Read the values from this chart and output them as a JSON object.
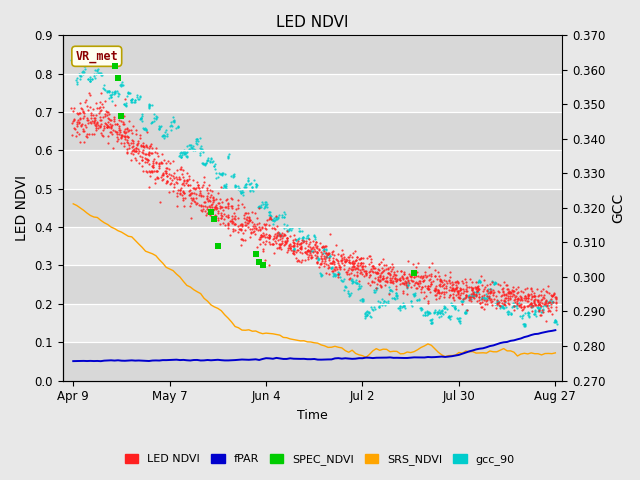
{
  "title": "LED NDVI",
  "xlabel": "Time",
  "ylabel_left": "LED NDVI",
  "ylabel_right": "GCC",
  "ylim_left": [
    0.0,
    0.9
  ],
  "ylim_right": [
    0.27,
    0.37
  ],
  "yticks_left": [
    0.0,
    0.1,
    0.2,
    0.3,
    0.4,
    0.5,
    0.6,
    0.7,
    0.8,
    0.9
  ],
  "yticks_right": [
    0.27,
    0.28,
    0.29,
    0.3,
    0.31,
    0.32,
    0.33,
    0.34,
    0.35,
    0.36,
    0.37
  ],
  "fig_bg_color": "#e8e8e8",
  "plot_bg_color": "#e8e8e8",
  "stripe_color": "#d0d0d0",
  "annotation_text": "VR_met",
  "annotation_color": "#8b0000",
  "annotation_bg": "#fffff0",
  "annotation_border": "#b8a000",
  "legend_labels": [
    "LED NDVI",
    "fPAR",
    "SPEC_NDVI",
    "SRS_NDVI",
    "gcc_90"
  ],
  "legend_colors": [
    "#ff2020",
    "#0000cd",
    "#00cc00",
    "#ffa500",
    "#00cccc"
  ],
  "series_colors": {
    "LED_NDVI": "#ff2020",
    "fPAR": "#0000cd",
    "SPEC_NDVI": "#00cc00",
    "SRS_NDVI": "#ffa500",
    "gcc_90": "#00cccc"
  },
  "tick_labels": [
    "Apr 9",
    "May 7",
    "Jun 4",
    "Jul 2",
    "Jul 30",
    "Aug 27"
  ],
  "tick_days": [
    0,
    28,
    56,
    84,
    112,
    140
  ],
  "n_days": 141
}
